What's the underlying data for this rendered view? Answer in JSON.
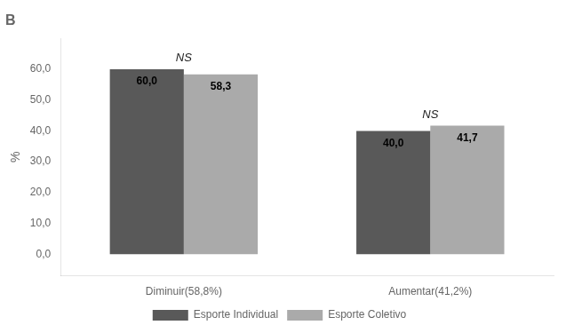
{
  "chart_data": {
    "type": "bar",
    "title": "B",
    "categories": [
      "Diminuir(58,8%)",
      "Aumentar(41,2%)"
    ],
    "series": [
      {
        "name": "Esporte Individual",
        "color": "#595959",
        "values": [
          60.0,
          40.0
        ],
        "value_labels": [
          "60,0",
          "40,0"
        ]
      },
      {
        "name": "Esporte Coletivo",
        "color": "#aaaaaa",
        "values": [
          58.3,
          41.7
        ],
        "value_labels": [
          "58,3",
          "41,7"
        ]
      }
    ],
    "annotations": [
      "NS",
      "NS"
    ],
    "ylabel": "%",
    "ylim": [
      -7,
      70
    ],
    "yticks": [
      {
        "value": 0,
        "label": "0,0"
      },
      {
        "value": 10,
        "label": "10,0"
      },
      {
        "value": 20,
        "label": "20,0"
      },
      {
        "value": 30,
        "label": "30,0"
      },
      {
        "value": 40,
        "label": "40,0"
      },
      {
        "value": 50,
        "label": "50,0"
      },
      {
        "value": 60,
        "label": "60,0"
      }
    ],
    "data_labels": true,
    "grid": false,
    "legend": "bottom"
  }
}
